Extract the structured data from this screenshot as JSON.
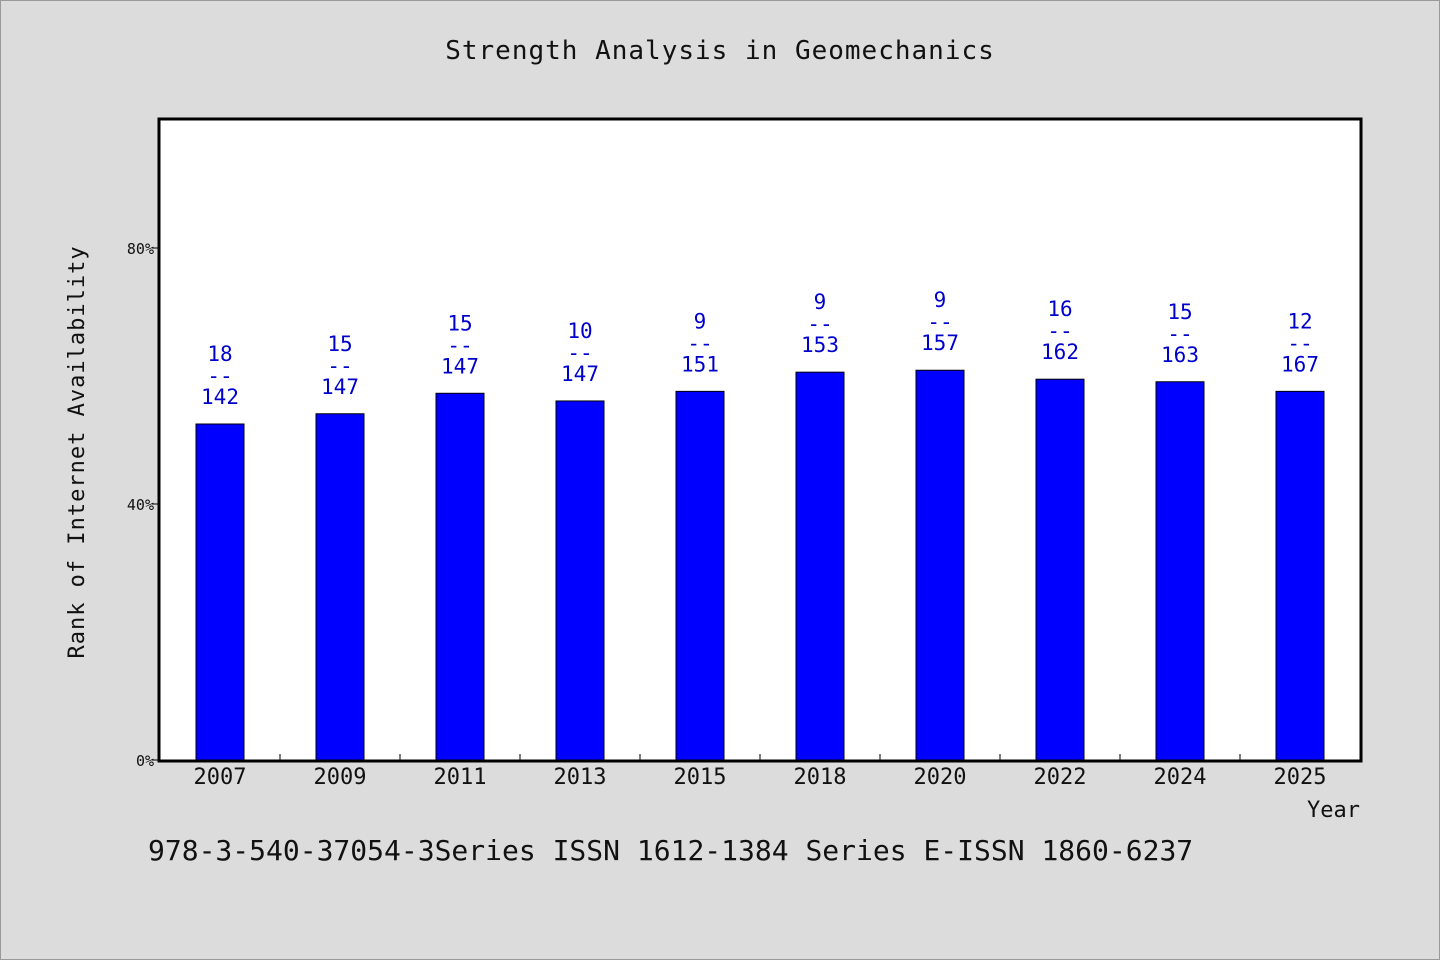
{
  "chart_data": {
    "type": "bar",
    "title": "Strength Analysis in Geomechanics",
    "xlabel": "Year",
    "ylabel": "Rank of Internet Availability",
    "ylim": [
      0,
      100
    ],
    "yticks": [
      0,
      40,
      80
    ],
    "ytick_labels": [
      "0%",
      "40%",
      "80%"
    ],
    "categories": [
      "2007",
      "2009",
      "2011",
      "2013",
      "2015",
      "2018",
      "2020",
      "2022",
      "2024",
      "2025"
    ],
    "values": [
      52.5,
      54.1,
      57.3,
      56.1,
      57.6,
      60.6,
      60.9,
      59.5,
      59.1,
      57.6
    ],
    "label_numerators": [
      "18",
      "15",
      "15",
      "10",
      "9",
      "9",
      "9",
      "16",
      "15",
      "12"
    ],
    "label_denominators": [
      "142",
      "147",
      "147",
      "147",
      "151",
      "153",
      "157",
      "162",
      "163",
      "167"
    ],
    "label_separator": "--",
    "grid": false,
    "bar_color": "#0000ff",
    "label_color": "#0000cc"
  },
  "footer": {
    "text": "978-3-540-37054-3Series ISSN 1612-1384 Series E-ISSN 1860-6237"
  }
}
